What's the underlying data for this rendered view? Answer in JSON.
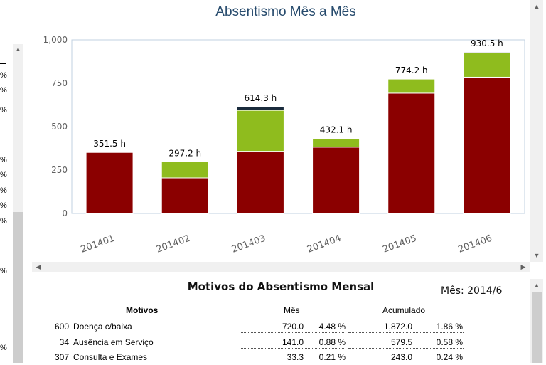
{
  "chart_data": {
    "type": "bar",
    "stacked": true,
    "title": "Absentismo Mês a Mês",
    "categories": [
      "201401",
      "201402",
      "201403",
      "201404",
      "201405",
      "201406"
    ],
    "series": [
      {
        "color": "#8b0000",
        "values": [
          351.5,
          205.0,
          358.0,
          382.0,
          693.0,
          785.0
        ]
      },
      {
        "color": "#8fbc1e",
        "values": [
          0,
          92.2,
          236.0,
          50.1,
          81.2,
          141.0
        ]
      },
      {
        "color": "#1a2b3c",
        "values": [
          0,
          0,
          20.3,
          0,
          0,
          4.5
        ]
      }
    ],
    "total_labels": [
      "351.5 h",
      "297.2 h",
      "614.3 h",
      "432.1 h",
      "774.2 h",
      "930.5 h"
    ],
    "totals": [
      351.5,
      297.2,
      614.3,
      432.1,
      774.2,
      930.5
    ],
    "ylim": [
      0,
      1000
    ],
    "yticks": [
      0,
      250,
      500,
      750,
      1000
    ],
    "ytick_labels": [
      "0",
      "250",
      "500",
      "750",
      "1,000"
    ],
    "xlabel": "",
    "ylabel": "",
    "grid": false,
    "legend": "none"
  },
  "left_strip": {
    "labels": [
      "%",
      "%",
      "%",
      "%",
      "%",
      "%",
      "%",
      "%",
      "%",
      "%",
      "%",
      "%"
    ]
  },
  "bottom": {
    "title": "Motivos do Absentismo Mensal",
    "month": "Mês: 2014/6",
    "headers": {
      "motivos": "Motivos",
      "mes": "Mês",
      "acumulado": "Acumulado"
    },
    "rows": [
      {
        "code": "600",
        "desc": "Doença c/baixa",
        "mes": "720.0",
        "mes_pct": "4.48 %",
        "acum": "1,872.0",
        "acum_pct": "1.86 %"
      },
      {
        "code": "34",
        "desc": "Ausência em Serviço",
        "mes": "141.0",
        "mes_pct": "0.88 %",
        "acum": "579.5",
        "acum_pct": "0.58 %"
      },
      {
        "code": "307",
        "desc": "Consulta e Exames",
        "mes": "33.3",
        "mes_pct": "0.21 %",
        "acum": "243.0",
        "acum_pct": "0.24 %"
      }
    ]
  }
}
